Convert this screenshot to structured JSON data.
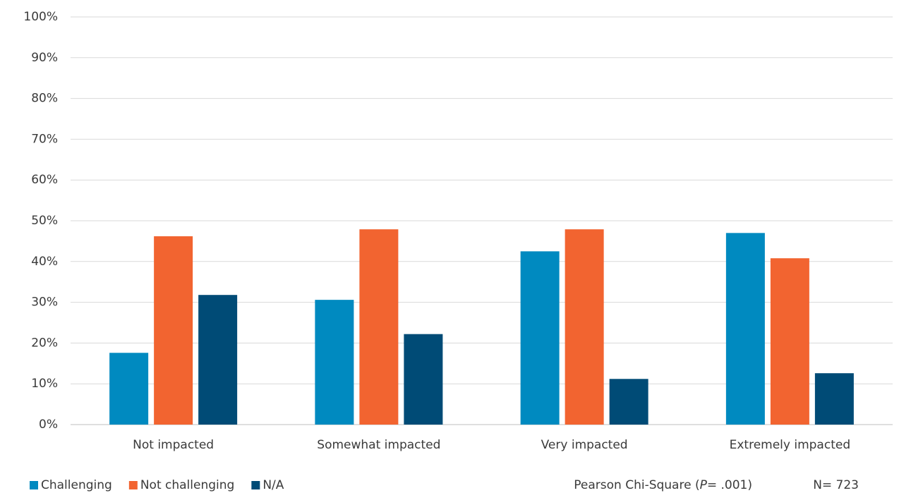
{
  "chart_data": {
    "type": "bar",
    "categories": [
      "Not impacted",
      "Somewhat impacted",
      "Very impacted",
      "Extremely impacted"
    ],
    "series": [
      {
        "name": "Challenging",
        "color": "#008ac0",
        "values": [
          17.6,
          30.6,
          42.5,
          47.0
        ]
      },
      {
        "name": "Not challenging",
        "color": "#f26430",
        "values": [
          46.2,
          47.9,
          47.9,
          40.8
        ]
      },
      {
        "name": "N/A",
        "color": "#004b76",
        "values": [
          31.8,
          22.2,
          11.2,
          12.6
        ]
      }
    ],
    "ylim": [
      0,
      100
    ],
    "yticks": [
      {
        "value": 0,
        "label": "0%"
      },
      {
        "value": 10,
        "label": "10%"
      },
      {
        "value": 20,
        "label": "20%"
      },
      {
        "value": 30,
        "label": "30%"
      },
      {
        "value": 40,
        "label": "40%"
      },
      {
        "value": 50,
        "label": "50%"
      },
      {
        "value": 60,
        "label": "60%"
      },
      {
        "value": 70,
        "label": "70%"
      },
      {
        "value": 80,
        "label": "80%"
      },
      {
        "value": 90,
        "label": "90%"
      },
      {
        "value": 100,
        "label": "100%"
      }
    ],
    "grid": true,
    "legend": "bottom-left",
    "annotations": {
      "test": [
        "Pearson Chi-Square (",
        "P",
        "= .001)"
      ],
      "n": "N= 723"
    }
  }
}
